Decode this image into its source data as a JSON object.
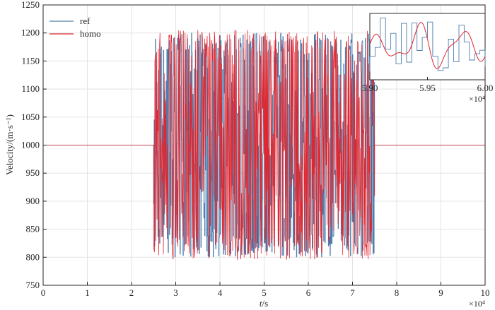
{
  "chart_data": {
    "type": "line",
    "xlabel_italic": "t",
    "xlabel_unit": "/s",
    "ylabel": "Velocity/(m·s⁻¹)",
    "x_multiplier_label": "×10⁴",
    "xlim": [
      0,
      100000
    ],
    "ylim": [
      750,
      1250
    ],
    "xticks": [
      0,
      1,
      2,
      3,
      4,
      5,
      6,
      7,
      8,
      9,
      10
    ],
    "yticks": [
      750,
      800,
      850,
      900,
      950,
      1000,
      1050,
      1100,
      1150,
      1200,
      1250
    ],
    "grid": true,
    "legend_position": "top-left",
    "series": [
      {
        "name": "ref",
        "color": "#4e7fae",
        "description_values": {
          "baseline": 1000,
          "active_range_x": [
            25000,
            75000
          ],
          "min": 800,
          "max": 1200
        }
      },
      {
        "name": "homo",
        "color": "#e0262f",
        "description_values": {
          "baseline": 1000,
          "active_range_x": [
            25000,
            75000
          ],
          "min": 795,
          "max": 1205
        }
      }
    ],
    "inset": {
      "position": "top-right",
      "xlim": [
        59000,
        60000
      ],
      "ylim": [
        850,
        1250
      ],
      "xticks": [
        "5.90",
        "5.95",
        "6.00"
      ],
      "x_multiplier_label": "×10⁴"
    }
  }
}
